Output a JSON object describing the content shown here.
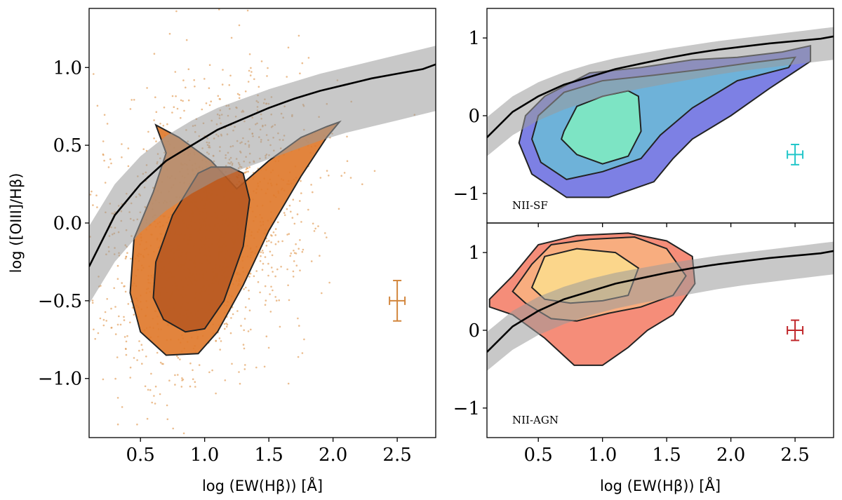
{
  "chart_data": [
    {
      "type": "scatter",
      "panel": "left",
      "xlabel": "log (EW(Hβ)) [Å]",
      "ylabel": "log ([OIII]/Hβ)",
      "xlim": [
        0.1,
        2.8
      ],
      "ylim": [
        -1.38,
        1.38
      ],
      "xticks": [
        0.5,
        1.0,
        1.5,
        2.0,
        2.5
      ],
      "xtick_labels": [
        "0.5",
        "1.0",
        "1.5",
        "2.0",
        "2.5"
      ],
      "yticks": [
        -1.0,
        -0.5,
        0.0,
        0.5,
        1.0
      ],
      "ytick_labels": [
        "−1.0",
        "−0.5",
        "0.0",
        "0.5",
        "1.0"
      ],
      "points_color": "#e3a15f",
      "density_colors": [
        "#f9dcc0",
        "#e07a2c",
        "#b95a22"
      ],
      "density_contours": [
        {
          "level": "outer",
          "color": "#e07a2c",
          "x": [
            0.62,
            0.7,
            0.6,
            0.45,
            0.42,
            0.5,
            0.7,
            0.95,
            1.1,
            1.3,
            1.5,
            1.75,
            1.95,
            2.05,
            1.95,
            1.75,
            1.5,
            1.25,
            1.05,
            0.8,
            0.62
          ],
          "y": [
            0.63,
            0.45,
            0.2,
            -0.1,
            -0.45,
            -0.7,
            -0.85,
            -0.84,
            -0.7,
            -0.4,
            -0.05,
            0.3,
            0.55,
            0.65,
            0.62,
            0.55,
            0.4,
            0.22,
            0.4,
            0.55,
            0.63
          ]
        },
        {
          "level": "inner",
          "color": "#b95a22",
          "x": [
            0.95,
            0.75,
            0.62,
            0.6,
            0.68,
            0.85,
            1.0,
            1.15,
            1.3,
            1.35,
            1.3,
            1.2,
            1.05,
            0.95
          ],
          "y": [
            0.32,
            0.05,
            -0.25,
            -0.48,
            -0.62,
            -0.7,
            -0.68,
            -0.5,
            -0.15,
            0.15,
            0.32,
            0.36,
            0.36,
            0.32
          ]
        }
      ],
      "line": {
        "name": "demarcation",
        "x": [
          0.1,
          0.3,
          0.5,
          0.7,
          0.9,
          1.1,
          1.3,
          1.5,
          1.7,
          1.9,
          2.1,
          2.3,
          2.5,
          2.7,
          2.8
        ],
        "y": [
          -0.28,
          0.05,
          0.25,
          0.4,
          0.5,
          0.6,
          0.67,
          0.74,
          0.8,
          0.85,
          0.89,
          0.93,
          0.96,
          0.99,
          1.02
        ]
      },
      "band": {
        "x": [
          0.1,
          0.3,
          0.5,
          0.7,
          0.9,
          1.1,
          1.3,
          1.5,
          1.7,
          1.9,
          2.1,
          2.3,
          2.5,
          2.7,
          2.8
        ],
        "upper": [
          -0.02,
          0.25,
          0.43,
          0.56,
          0.66,
          0.74,
          0.8,
          0.86,
          0.91,
          0.96,
          1.0,
          1.04,
          1.08,
          1.12,
          1.14
        ],
        "lower": [
          -0.52,
          -0.25,
          -0.06,
          0.08,
          0.19,
          0.28,
          0.35,
          0.41,
          0.47,
          0.53,
          0.58,
          0.62,
          0.66,
          0.7,
          0.72
        ]
      },
      "error_bar": {
        "x": 2.5,
        "y": -0.5,
        "xerr": 0.06,
        "yerr": 0.13,
        "color": "#d2863d"
      }
    },
    {
      "type": "scatter",
      "panel": "top-right",
      "annotation": "NII-SF",
      "xlim": [
        0.1,
        2.8
      ],
      "ylim": [
        -1.38,
        1.38
      ],
      "xticks": [
        0.5,
        1.0,
        1.5,
        2.0,
        2.5
      ],
      "yticks": [
        -1,
        0,
        1
      ],
      "ytick_labels": [
        "−1",
        "0",
        "1"
      ],
      "density_colors": [
        "#7275e2",
        "#6cb6d8",
        "#7ee8c2"
      ],
      "density_contours": [
        {
          "level": "outer",
          "color": "#7275e2",
          "x": [
            0.4,
            0.55,
            0.9,
            1.3,
            1.7,
            2.05,
            2.4,
            2.62,
            2.62,
            2.3,
            2.0,
            1.7,
            1.55,
            1.4,
            1.05,
            0.72,
            0.45,
            0.35,
            0.4
          ],
          "y": [
            0.0,
            0.25,
            0.55,
            0.62,
            0.72,
            0.75,
            0.82,
            0.9,
            0.7,
            0.35,
            0.0,
            -0.3,
            -0.55,
            -0.85,
            -1.05,
            -1.05,
            -0.75,
            -0.35,
            0.0
          ]
        },
        {
          "level": "middle",
          "color": "#6cb6d8",
          "x": [
            0.5,
            0.7,
            1.0,
            1.4,
            1.8,
            2.15,
            2.5,
            2.45,
            2.05,
            1.7,
            1.45,
            1.3,
            1.0,
            0.72,
            0.52,
            0.45,
            0.5
          ],
          "y": [
            0.0,
            0.3,
            0.45,
            0.52,
            0.6,
            0.68,
            0.75,
            0.62,
            0.45,
            0.1,
            -0.25,
            -0.55,
            -0.72,
            -0.82,
            -0.6,
            -0.3,
            0.0
          ]
        },
        {
          "level": "inner",
          "color": "#7ee8c2",
          "x": [
            0.7,
            0.8,
            1.0,
            1.2,
            1.28,
            1.3,
            1.2,
            1.0,
            0.8,
            0.68,
            0.7
          ],
          "y": [
            -0.2,
            0.12,
            0.25,
            0.32,
            0.25,
            -0.2,
            -0.52,
            -0.62,
            -0.5,
            -0.3,
            -0.2
          ]
        }
      ],
      "line": {
        "name": "demarcation",
        "x": [
          0.1,
          0.3,
          0.5,
          0.7,
          0.9,
          1.1,
          1.3,
          1.5,
          1.7,
          1.9,
          2.1,
          2.3,
          2.5,
          2.7,
          2.8
        ],
        "y": [
          -0.28,
          0.05,
          0.25,
          0.4,
          0.5,
          0.6,
          0.67,
          0.74,
          0.8,
          0.85,
          0.89,
          0.93,
          0.96,
          0.99,
          1.02
        ]
      },
      "band": {
        "x": [
          0.1,
          0.3,
          0.5,
          0.7,
          0.9,
          1.1,
          1.3,
          1.5,
          1.7,
          1.9,
          2.1,
          2.3,
          2.5,
          2.7,
          2.8
        ],
        "upper": [
          -0.02,
          0.25,
          0.43,
          0.56,
          0.66,
          0.74,
          0.8,
          0.86,
          0.91,
          0.96,
          1.0,
          1.04,
          1.08,
          1.12,
          1.14
        ],
        "lower": [
          -0.52,
          -0.25,
          -0.06,
          0.08,
          0.19,
          0.28,
          0.35,
          0.41,
          0.47,
          0.53,
          0.58,
          0.62,
          0.66,
          0.7,
          0.72
        ]
      },
      "error_bar": {
        "x": 2.5,
        "y": -0.5,
        "xerr": 0.06,
        "yerr": 0.13,
        "color": "#21c6c9"
      }
    },
    {
      "type": "scatter",
      "panel": "bottom-right",
      "annotation": "NII-AGN",
      "xlabel": "log (EW(Hβ)) [Å]",
      "xlim": [
        0.1,
        2.8
      ],
      "ylim": [
        -1.38,
        1.38
      ],
      "xticks": [
        0.5,
        1.0,
        1.5,
        2.0,
        2.5
      ],
      "xtick_labels": [
        "0.5",
        "1.0",
        "1.5",
        "2.0",
        "2.5"
      ],
      "yticks": [
        -1,
        0,
        1
      ],
      "ytick_labels": [
        "−1",
        "0",
        "1"
      ],
      "density_colors": [
        "#f4836e",
        "#f7b080",
        "#fbd98c"
      ],
      "density_contours": [
        {
          "level": "outer",
          "color": "#f4836e",
          "x": [
            0.12,
            0.3,
            0.5,
            0.8,
            1.2,
            1.5,
            1.7,
            1.72,
            1.55,
            1.35,
            1.2,
            1.0,
            0.78,
            0.55,
            0.3,
            0.12,
            0.12
          ],
          "y": [
            0.4,
            0.7,
            1.1,
            1.22,
            1.25,
            1.15,
            0.95,
            0.6,
            0.2,
            0.0,
            -0.22,
            -0.45,
            -0.45,
            -0.1,
            0.2,
            0.3,
            0.4
          ]
        },
        {
          "level": "middle",
          "color": "#f7b080",
          "x": [
            0.3,
            0.45,
            0.6,
            0.9,
            1.25,
            1.5,
            1.65,
            1.55,
            1.3,
            1.05,
            0.8,
            0.6,
            0.4,
            0.3
          ],
          "y": [
            0.5,
            0.85,
            1.1,
            1.17,
            1.2,
            1.05,
            0.7,
            0.45,
            0.3,
            0.22,
            0.12,
            0.15,
            0.35,
            0.5
          ]
        },
        {
          "level": "inner",
          "color": "#fbd98c",
          "x": [
            0.45,
            0.55,
            0.8,
            1.1,
            1.28,
            1.2,
            1.0,
            0.75,
            0.55,
            0.45
          ],
          "y": [
            0.55,
            0.95,
            1.05,
            1.0,
            0.8,
            0.45,
            0.38,
            0.35,
            0.4,
            0.55
          ]
        }
      ],
      "line": {
        "name": "demarcation",
        "x": [
          0.1,
          0.3,
          0.5,
          0.7,
          0.9,
          1.1,
          1.3,
          1.5,
          1.7,
          1.9,
          2.1,
          2.3,
          2.5,
          2.7,
          2.8
        ],
        "y": [
          -0.28,
          0.05,
          0.25,
          0.4,
          0.5,
          0.6,
          0.67,
          0.74,
          0.8,
          0.85,
          0.89,
          0.93,
          0.96,
          0.99,
          1.02
        ]
      },
      "band": {
        "x": [
          0.1,
          0.3,
          0.5,
          0.7,
          0.9,
          1.1,
          1.3,
          1.5,
          1.7,
          1.9,
          2.1,
          2.3,
          2.5,
          2.7,
          2.8
        ],
        "upper": [
          -0.02,
          0.25,
          0.43,
          0.56,
          0.66,
          0.74,
          0.8,
          0.86,
          0.91,
          0.96,
          1.0,
          1.04,
          1.08,
          1.12,
          1.14
        ],
        "lower": [
          -0.52,
          -0.25,
          -0.06,
          0.08,
          0.19,
          0.28,
          0.35,
          0.41,
          0.47,
          0.53,
          0.58,
          0.62,
          0.66,
          0.7,
          0.72
        ]
      },
      "error_bar": {
        "x": 2.5,
        "y": 0.0,
        "xerr": 0.06,
        "yerr": 0.13,
        "color": "#c0262a"
      }
    }
  ]
}
